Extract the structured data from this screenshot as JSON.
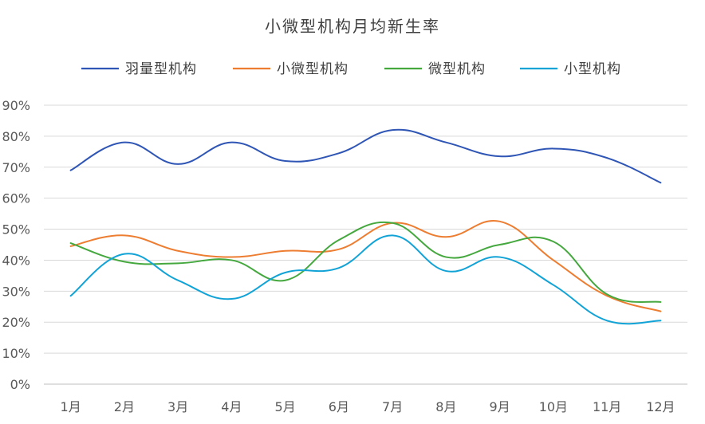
{
  "chart_data": {
    "type": "line",
    "title": "小微型机构月均新生率",
    "xlabel": "",
    "ylabel": "",
    "categories": [
      "1月",
      "2月",
      "3月",
      "4月",
      "5月",
      "6月",
      "7月",
      "8月",
      "9月",
      "10月",
      "11月",
      "12月"
    ],
    "y_ticks": [
      "0%",
      "10%",
      "20%",
      "30%",
      "40%",
      "50%",
      "60%",
      "70%",
      "80%",
      "90%"
    ],
    "ylim": [
      0,
      90
    ],
    "grid": true,
    "smooth": true,
    "legend_position": "top",
    "series": [
      {
        "name": "羽量型机构",
        "color": "#2f55b5",
        "values": [
          69,
          78,
          71,
          78,
          72,
          74.5,
          82,
          78,
          73.5,
          76,
          73,
          65
        ]
      },
      {
        "name": "小微型机构",
        "color": "#ed7d31",
        "values": [
          44.5,
          48,
          43,
          41,
          43,
          43.5,
          52,
          47.5,
          52.5,
          40,
          28.5,
          23.5
        ]
      },
      {
        "name": "微型机构",
        "color": "#45a83e",
        "values": [
          45.5,
          39.5,
          39,
          40,
          33.5,
          46.5,
          52,
          41,
          45,
          46,
          29,
          26.5
        ]
      },
      {
        "name": "小型机构",
        "color": "#12a3d6",
        "values": [
          28.5,
          42,
          33.5,
          27.5,
          36,
          37.5,
          48,
          36.5,
          41,
          32,
          20.5,
          20.5
        ]
      }
    ]
  }
}
